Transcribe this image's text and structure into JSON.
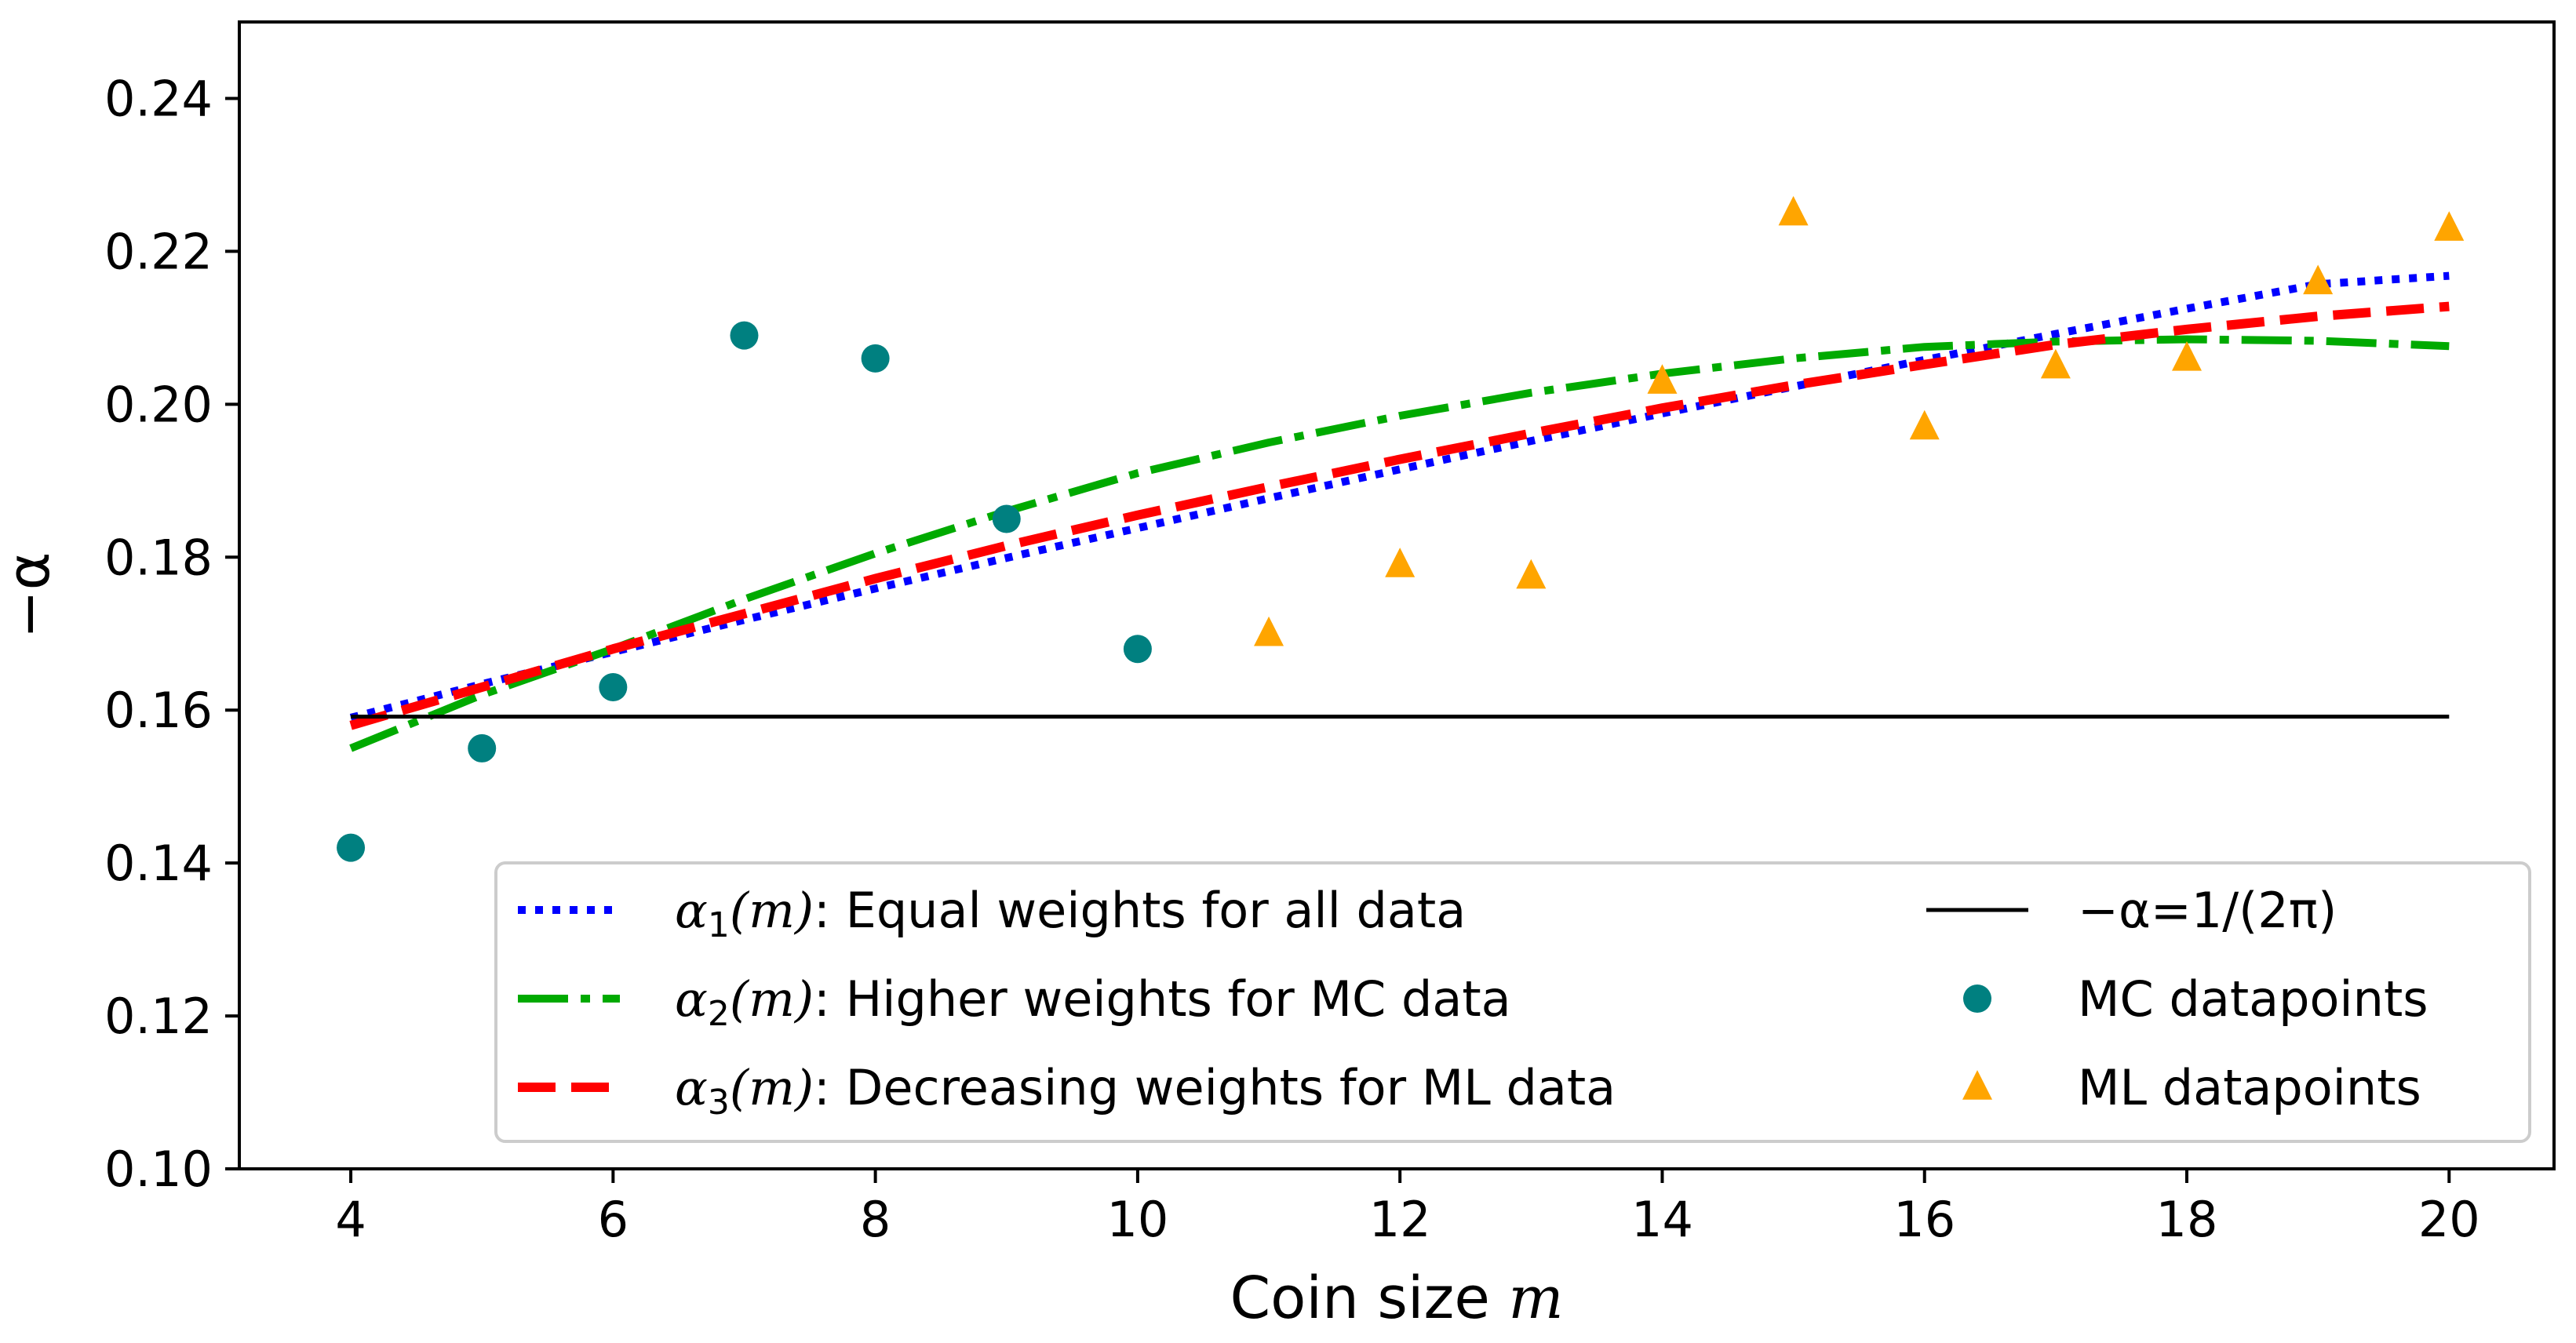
{
  "chart_data": {
    "type": "line",
    "title": "",
    "xlabel_text": "Coin size ",
    "xlabel_var": "m",
    "ylabel": "−α",
    "xlim": [
      3.15,
      20.8
    ],
    "ylim": [
      0.1,
      0.25
    ],
    "xticks": [
      4,
      6,
      8,
      10,
      12,
      14,
      16,
      18,
      20
    ],
    "yticks": [
      0.1,
      0.12,
      0.14,
      0.16,
      0.18,
      0.2,
      0.22,
      0.24
    ],
    "ytick_labels": [
      "0.10",
      "0.12",
      "0.14",
      "0.16",
      "0.18",
      "0.20",
      "0.22",
      "0.24"
    ],
    "grid": false,
    "legend_position": "lower-right",
    "series": [
      {
        "name": "α1(m): Equal weights for all data",
        "legend_sym": "α",
        "legend_sub": "1",
        "legend_arg": "(m)",
        "legend_desc": ": Equal weights for all data",
        "style": "dotted",
        "color": "#0000ff",
        "x": [
          4,
          5,
          6,
          7,
          8,
          9,
          10,
          11,
          12,
          13,
          14,
          15,
          16,
          17,
          18,
          19,
          20
        ],
        "values": [
          0.159,
          0.1634,
          0.1676,
          0.1718,
          0.1759,
          0.1799,
          0.1838,
          0.1877,
          0.1915,
          0.1952,
          0.1988,
          0.2023,
          0.2058,
          0.2092,
          0.2125,
          0.2157,
          0.2168
        ]
      },
      {
        "name": "α2(m): Higher weights for MC data",
        "legend_sym": "α",
        "legend_sub": "2",
        "legend_arg": "(m)",
        "legend_desc": ": Higher weights for MC data",
        "style": "dashdot",
        "color": "#00aa00",
        "x": [
          4,
          5,
          6,
          7,
          8,
          9,
          10,
          11,
          12,
          13,
          14,
          15,
          16,
          17,
          18,
          19,
          20
        ],
        "values": [
          0.155,
          0.162,
          0.168,
          0.1745,
          0.1805,
          0.186,
          0.191,
          0.195,
          0.1985,
          0.2015,
          0.204,
          0.206,
          0.2075,
          0.2082,
          0.2085,
          0.2083,
          0.2076
        ]
      },
      {
        "name": "α3(m): Decreasing weights for ML data",
        "legend_sym": "α",
        "legend_sub": "3",
        "legend_arg": "(m)",
        "legend_desc": ": Decreasing weights for ML data",
        "style": "dashed",
        "color": "#ff0000",
        "x": [
          4,
          5,
          6,
          7,
          8,
          9,
          10,
          11,
          12,
          13,
          14,
          15,
          16,
          17,
          18,
          19,
          20
        ],
        "values": [
          0.158,
          0.163,
          0.168,
          0.1726,
          0.1772,
          0.1815,
          0.1855,
          0.1892,
          0.1928,
          0.1962,
          0.1995,
          0.2025,
          0.2052,
          0.2078,
          0.2098,
          0.2115,
          0.2128
        ]
      },
      {
        "name": "−α=1/(2π)",
        "legend_text": "−α=1/(2π)",
        "style": "solid",
        "color": "#000000",
        "x": [
          4,
          20
        ],
        "values": [
          0.15915,
          0.15915
        ]
      }
    ],
    "scatter": [
      {
        "name": "MC datapoints",
        "marker": "circle",
        "color": "#008080",
        "x": [
          4,
          5,
          6,
          7,
          8,
          9,
          10
        ],
        "values": [
          0.142,
          0.155,
          0.163,
          0.209,
          0.206,
          0.185,
          0.168
        ]
      },
      {
        "name": "ML datapoints",
        "marker": "triangle",
        "color": "#ffa500",
        "x": [
          11,
          12,
          13,
          14,
          15,
          16,
          17,
          18,
          19,
          20
        ],
        "values": [
          0.17,
          0.179,
          0.1775,
          0.203,
          0.225,
          0.197,
          0.205,
          0.206,
          0.216,
          0.223
        ]
      }
    ]
  }
}
